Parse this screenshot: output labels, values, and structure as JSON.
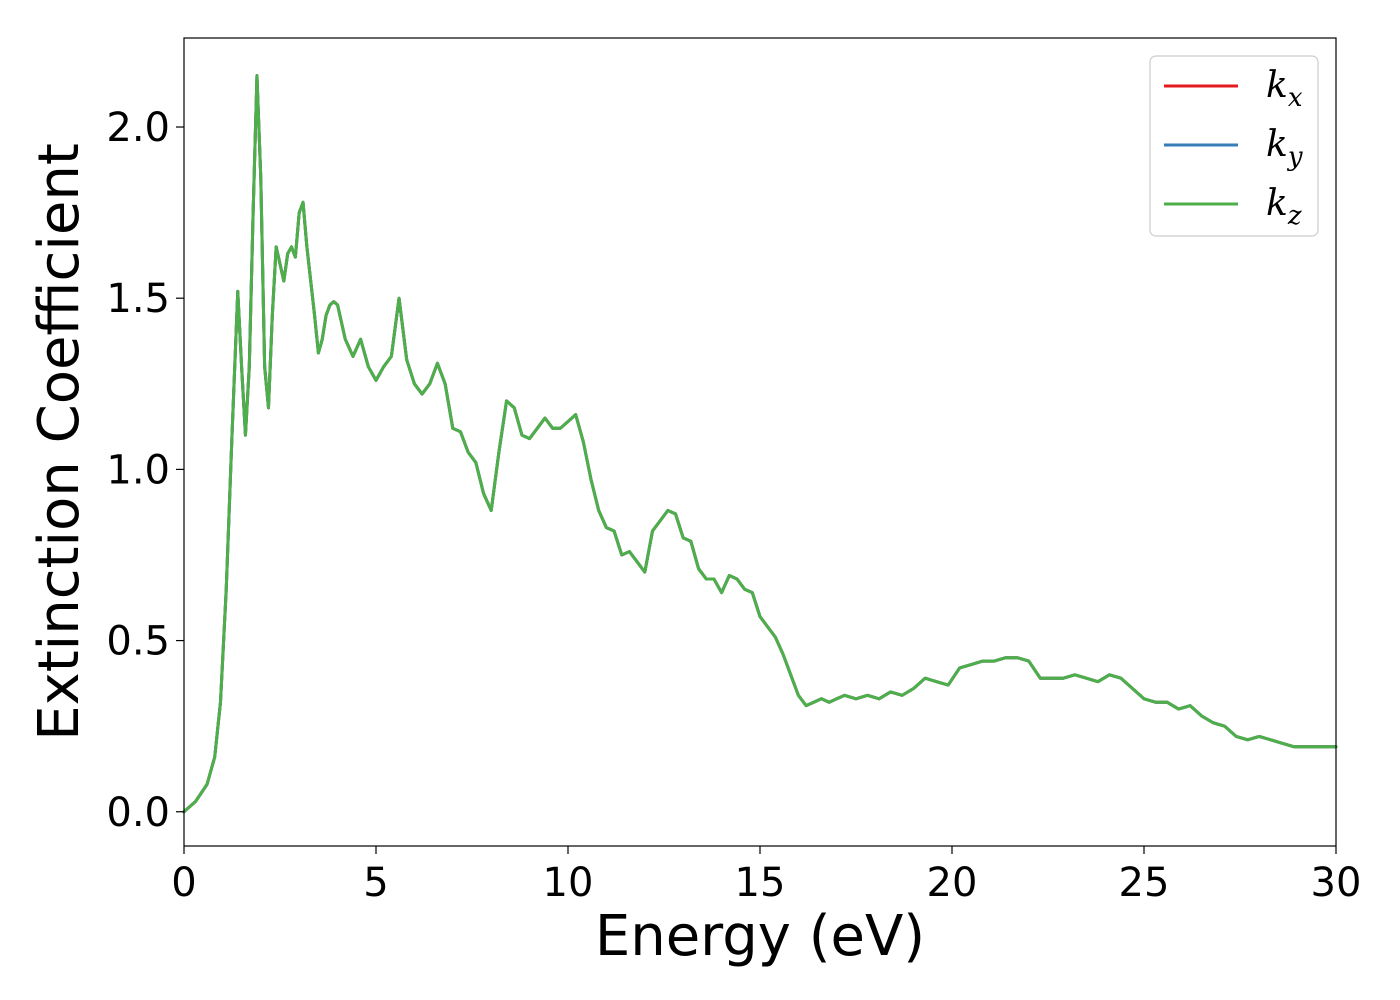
{
  "chart_data": {
    "type": "line",
    "xlabel": "Energy (eV)",
    "ylabel": "Extinction Coefficient",
    "xlim": [
      0,
      30
    ],
    "ylim": [
      -0.1,
      2.26
    ],
    "xticks": [
      0,
      5,
      10,
      15,
      20,
      25,
      30
    ],
    "yticks": [
      0.0,
      0.5,
      1.0,
      1.5,
      2.0
    ],
    "xtick_labels": [
      "0",
      "5",
      "10",
      "15",
      "20",
      "25",
      "30"
    ],
    "ytick_labels": [
      "0.0",
      "0.5",
      "1.0",
      "1.5",
      "2.0"
    ],
    "grid": false,
    "legend_position": "top-right",
    "x": [
      0,
      0.3,
      0.6,
      0.8,
      0.95,
      1.1,
      1.25,
      1.4,
      1.5,
      1.6,
      1.7,
      1.8,
      1.9,
      2.0,
      2.1,
      2.2,
      2.3,
      2.4,
      2.5,
      2.6,
      2.7,
      2.8,
      2.9,
      3.0,
      3.1,
      3.2,
      3.3,
      3.4,
      3.5,
      3.6,
      3.7,
      3.8,
      3.9,
      4.0,
      4.2,
      4.4,
      4.6,
      4.8,
      5.0,
      5.2,
      5.4,
      5.6,
      5.8,
      6.0,
      6.2,
      6.4,
      6.6,
      6.8,
      7.0,
      7.2,
      7.4,
      7.6,
      7.8,
      8.0,
      8.2,
      8.4,
      8.6,
      8.8,
      9.0,
      9.2,
      9.4,
      9.6,
      9.8,
      10.0,
      10.2,
      10.4,
      10.6,
      10.8,
      11.0,
      11.2,
      11.4,
      11.6,
      11.8,
      12.0,
      12.2,
      12.4,
      12.6,
      12.8,
      13.0,
      13.2,
      13.4,
      13.6,
      13.8,
      14.0,
      14.2,
      14.4,
      14.6,
      14.8,
      15.0,
      15.2,
      15.4,
      15.6,
      15.8,
      16.0,
      16.2,
      16.4,
      16.6,
      16.8,
      17.0,
      17.2,
      17.5,
      17.8,
      18.1,
      18.4,
      18.7,
      19.0,
      19.3,
      19.6,
      19.9,
      20.2,
      20.5,
      20.8,
      21.1,
      21.4,
      21.7,
      22.0,
      22.3,
      22.6,
      22.9,
      23.2,
      23.5,
      23.8,
      24.1,
      24.4,
      24.7,
      25.0,
      25.3,
      25.6,
      25.9,
      26.2,
      26.5,
      26.8,
      27.1,
      27.4,
      27.7,
      28.0,
      28.3,
      28.6,
      28.9,
      29.2,
      29.5,
      29.8,
      30.0
    ],
    "series": [
      {
        "name": "k_x",
        "color": "#e41a1c",
        "values": [
          0.0,
          0.03,
          0.08,
          0.16,
          0.32,
          0.65,
          1.1,
          1.52,
          1.3,
          1.1,
          1.3,
          1.75,
          2.15,
          1.85,
          1.3,
          1.18,
          1.45,
          1.65,
          1.6,
          1.55,
          1.63,
          1.65,
          1.62,
          1.75,
          1.78,
          1.65,
          1.55,
          1.45,
          1.34,
          1.38,
          1.45,
          1.48,
          1.49,
          1.48,
          1.38,
          1.33,
          1.38,
          1.3,
          1.26,
          1.3,
          1.33,
          1.5,
          1.32,
          1.25,
          1.22,
          1.25,
          1.31,
          1.25,
          1.12,
          1.11,
          1.05,
          1.02,
          0.93,
          0.88,
          1.05,
          1.2,
          1.18,
          1.1,
          1.09,
          1.12,
          1.15,
          1.12,
          1.12,
          1.14,
          1.16,
          1.08,
          0.97,
          0.88,
          0.83,
          0.82,
          0.75,
          0.76,
          0.73,
          0.7,
          0.82,
          0.85,
          0.88,
          0.87,
          0.8,
          0.79,
          0.71,
          0.68,
          0.68,
          0.64,
          0.69,
          0.68,
          0.65,
          0.64,
          0.57,
          0.54,
          0.51,
          0.46,
          0.4,
          0.34,
          0.31,
          0.32,
          0.33,
          0.32,
          0.33,
          0.34,
          0.33,
          0.34,
          0.33,
          0.35,
          0.34,
          0.36,
          0.39,
          0.38,
          0.37,
          0.42,
          0.43,
          0.44,
          0.44,
          0.45,
          0.45,
          0.44,
          0.39,
          0.39,
          0.39,
          0.4,
          0.39,
          0.38,
          0.4,
          0.39,
          0.36,
          0.33,
          0.32,
          0.32,
          0.3,
          0.31,
          0.28,
          0.26,
          0.25,
          0.22,
          0.21,
          0.22,
          0.21,
          0.2,
          0.19,
          0.19,
          0.19,
          0.19,
          0.19
        ]
      },
      {
        "name": "k_y",
        "color": "#377eb8",
        "values": [
          0.0,
          0.03,
          0.08,
          0.16,
          0.32,
          0.65,
          1.1,
          1.52,
          1.3,
          1.1,
          1.3,
          1.75,
          2.15,
          1.85,
          1.3,
          1.18,
          1.45,
          1.65,
          1.6,
          1.55,
          1.63,
          1.65,
          1.62,
          1.75,
          1.78,
          1.65,
          1.55,
          1.45,
          1.34,
          1.38,
          1.45,
          1.48,
          1.49,
          1.48,
          1.38,
          1.33,
          1.38,
          1.3,
          1.26,
          1.3,
          1.33,
          1.5,
          1.32,
          1.25,
          1.22,
          1.25,
          1.31,
          1.25,
          1.12,
          1.11,
          1.05,
          1.02,
          0.93,
          0.88,
          1.05,
          1.2,
          1.18,
          1.1,
          1.09,
          1.12,
          1.15,
          1.12,
          1.12,
          1.14,
          1.16,
          1.08,
          0.97,
          0.88,
          0.83,
          0.82,
          0.75,
          0.76,
          0.73,
          0.7,
          0.82,
          0.85,
          0.88,
          0.87,
          0.8,
          0.79,
          0.71,
          0.68,
          0.68,
          0.64,
          0.69,
          0.68,
          0.65,
          0.64,
          0.57,
          0.54,
          0.51,
          0.46,
          0.4,
          0.34,
          0.31,
          0.32,
          0.33,
          0.32,
          0.33,
          0.34,
          0.33,
          0.34,
          0.33,
          0.35,
          0.34,
          0.36,
          0.39,
          0.38,
          0.37,
          0.42,
          0.43,
          0.44,
          0.44,
          0.45,
          0.45,
          0.44,
          0.39,
          0.39,
          0.39,
          0.4,
          0.39,
          0.38,
          0.4,
          0.39,
          0.36,
          0.33,
          0.32,
          0.32,
          0.3,
          0.31,
          0.28,
          0.26,
          0.25,
          0.22,
          0.21,
          0.22,
          0.21,
          0.2,
          0.19,
          0.19,
          0.19,
          0.19,
          0.19
        ]
      },
      {
        "name": "k_z",
        "color": "#4daf4a",
        "values": [
          0.0,
          0.03,
          0.08,
          0.16,
          0.32,
          0.65,
          1.1,
          1.52,
          1.3,
          1.1,
          1.3,
          1.75,
          2.15,
          1.85,
          1.3,
          1.18,
          1.45,
          1.65,
          1.6,
          1.55,
          1.63,
          1.65,
          1.62,
          1.75,
          1.78,
          1.65,
          1.55,
          1.45,
          1.34,
          1.38,
          1.45,
          1.48,
          1.49,
          1.48,
          1.38,
          1.33,
          1.38,
          1.3,
          1.26,
          1.3,
          1.33,
          1.5,
          1.32,
          1.25,
          1.22,
          1.25,
          1.31,
          1.25,
          1.12,
          1.11,
          1.05,
          1.02,
          0.93,
          0.88,
          1.05,
          1.2,
          1.18,
          1.1,
          1.09,
          1.12,
          1.15,
          1.12,
          1.12,
          1.14,
          1.16,
          1.08,
          0.97,
          0.88,
          0.83,
          0.82,
          0.75,
          0.76,
          0.73,
          0.7,
          0.82,
          0.85,
          0.88,
          0.87,
          0.8,
          0.79,
          0.71,
          0.68,
          0.68,
          0.64,
          0.69,
          0.68,
          0.65,
          0.64,
          0.57,
          0.54,
          0.51,
          0.46,
          0.4,
          0.34,
          0.31,
          0.32,
          0.33,
          0.32,
          0.33,
          0.34,
          0.33,
          0.34,
          0.33,
          0.35,
          0.34,
          0.36,
          0.39,
          0.38,
          0.37,
          0.42,
          0.43,
          0.44,
          0.44,
          0.45,
          0.45,
          0.44,
          0.39,
          0.39,
          0.39,
          0.4,
          0.39,
          0.38,
          0.4,
          0.39,
          0.36,
          0.33,
          0.32,
          0.32,
          0.3,
          0.31,
          0.28,
          0.26,
          0.25,
          0.22,
          0.21,
          0.22,
          0.21,
          0.2,
          0.19,
          0.19,
          0.19,
          0.19,
          0.19
        ]
      }
    ],
    "legend": [
      {
        "base": "k",
        "sub": "x",
        "color": "#e41a1c"
      },
      {
        "base": "k",
        "sub": "y",
        "color": "#377eb8"
      },
      {
        "base": "k",
        "sub": "z",
        "color": "#4daf4a"
      }
    ]
  }
}
